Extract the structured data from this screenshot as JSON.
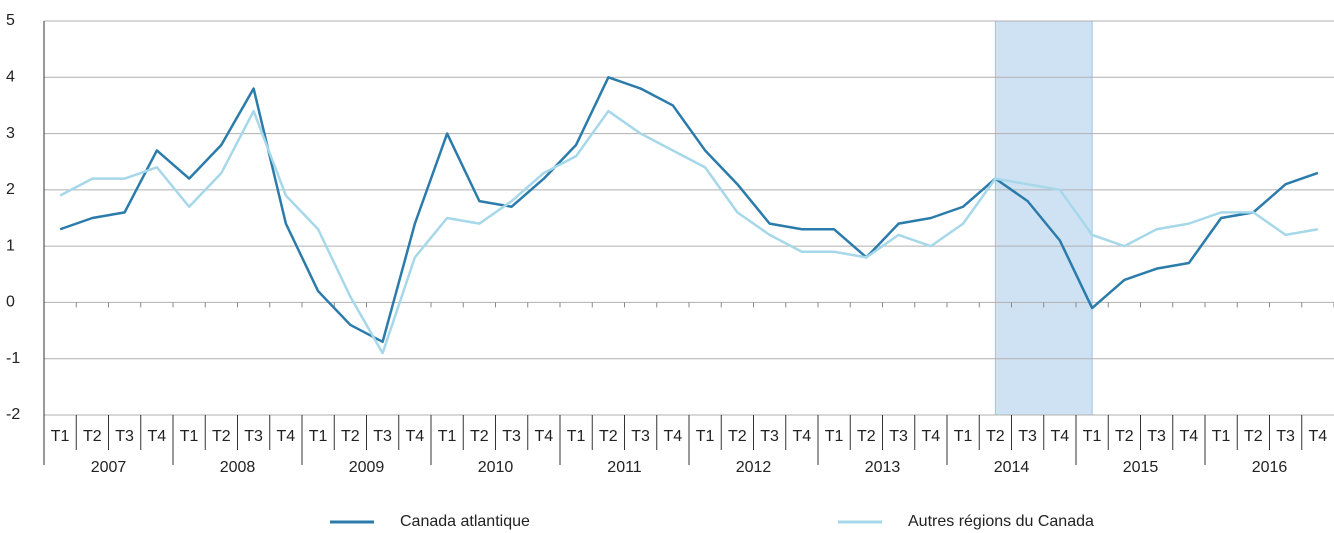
{
  "chart_data": {
    "type": "line",
    "categories": [
      "T1",
      "T2",
      "T3",
      "T4",
      "T1",
      "T2",
      "T3",
      "T4",
      "T1",
      "T2",
      "T3",
      "T4",
      "T1",
      "T2",
      "T3",
      "T4",
      "T1",
      "T2",
      "T3",
      "T4",
      "T1",
      "T2",
      "T3",
      "T4",
      "T1",
      "T2",
      "T3",
      "T4",
      "T1",
      "T2",
      "T3",
      "T4",
      "T1",
      "T2",
      "T3",
      "T4",
      "T1",
      "T2",
      "T3",
      "T4"
    ],
    "groups": [
      "2007",
      "2008",
      "2009",
      "2010",
      "2011",
      "2012",
      "2013",
      "2014",
      "2015",
      "2016"
    ],
    "series": [
      {
        "name": "Canada atlantique",
        "color": "#2b7bab",
        "values": [
          1.3,
          1.5,
          1.6,
          2.7,
          2.2,
          2.8,
          3.8,
          1.4,
          0.2,
          -0.4,
          -0.7,
          1.4,
          3.0,
          1.8,
          1.7,
          2.2,
          2.8,
          4.0,
          3.8,
          3.5,
          2.7,
          2.1,
          1.4,
          1.3,
          1.3,
          0.8,
          1.4,
          1.5,
          1.7,
          2.2,
          1.8,
          1.1,
          -0.1,
          0.4,
          0.6,
          0.7,
          1.5,
          1.6,
          2.1,
          2.3
        ]
      },
      {
        "name": "Autres régions du Canada",
        "color": "#a6d8ea",
        "values": [
          1.9,
          2.2,
          2.2,
          2.4,
          1.7,
          2.3,
          3.4,
          1.9,
          1.3,
          0.1,
          -0.9,
          0.8,
          1.5,
          1.4,
          1.8,
          2.3,
          2.6,
          3.4,
          3.0,
          2.7,
          2.4,
          1.6,
          1.2,
          0.9,
          0.9,
          0.8,
          1.2,
          1.0,
          1.4,
          2.2,
          2.1,
          2.0,
          1.2,
          1.0,
          1.3,
          1.4,
          1.6,
          1.6,
          1.2,
          1.3
        ]
      }
    ],
    "shade": [
      29,
      32
    ],
    "shade_color": "#cfe2f3",
    "ylim": [
      -2,
      5
    ],
    "yticks": [
      -2,
      -1,
      0,
      1,
      2,
      3,
      4,
      5
    ],
    "grid": true
  }
}
